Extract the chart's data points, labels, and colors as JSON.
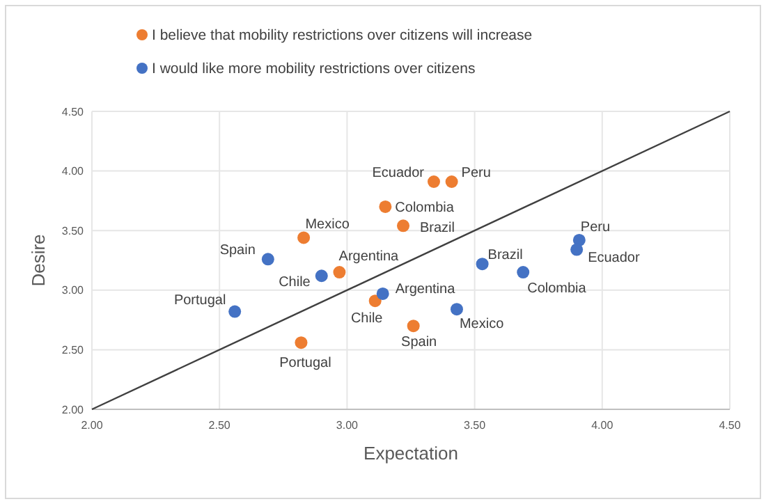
{
  "chart_data": {
    "type": "scatter",
    "xlabel": "Expectation",
    "ylabel": "Desire",
    "xlim": [
      2,
      4.5
    ],
    "ylim": [
      2,
      4.5
    ],
    "xticks": [
      {
        "value": 2,
        "label": "2.00"
      },
      {
        "value": 2.5,
        "label": "2.50"
      },
      {
        "value": 3,
        "label": "3.00"
      },
      {
        "value": 3.5,
        "label": "3.50"
      },
      {
        "value": 4,
        "label": "4.00"
      },
      {
        "value": 4.5,
        "label": "4.50"
      }
    ],
    "yticks": [
      {
        "value": 2,
        "label": "2.00"
      },
      {
        "value": 2.5,
        "label": "2.50"
      },
      {
        "value": 3,
        "label": "3.00"
      },
      {
        "value": 3.5,
        "label": "3.50"
      },
      {
        "value": 4,
        "label": "4.00"
      },
      {
        "value": 4.5,
        "label": "4.50"
      }
    ],
    "grid": true,
    "legend": "top",
    "series": [
      {
        "name": "I believe that mobility restrictions over citizens will increase",
        "color": "#ed7d31",
        "marker": "circle",
        "x": [
          3.34,
          3.41,
          3.15,
          3.22,
          2.83,
          2.97,
          3.11,
          3.26,
          2.82
        ],
        "values": [
          3.91,
          3.91,
          3.7,
          3.54,
          3.44,
          3.15,
          2.91,
          2.7,
          2.56
        ]
      },
      {
        "name": "I would like more mobility restrictions over citizens",
        "color": "#4472c4",
        "marker": "circle",
        "x": [
          2.69,
          2.9,
          2.56,
          3.14,
          3.43,
          3.53,
          3.69,
          3.91,
          3.9
        ],
        "values": [
          3.26,
          3.12,
          2.82,
          2.97,
          2.84,
          3.22,
          3.15,
          3.42,
          3.34
        ]
      },
      {
        "type": "line",
        "color": "#404040",
        "x": [
          2,
          4.5
        ],
        "values": [
          2,
          4.5
        ]
      }
    ],
    "annotations": [
      {
        "text": "Ecuador",
        "x": 3.34,
        "y": 3.91
      },
      {
        "text": "Peru",
        "x": 3.41,
        "y": 3.91
      },
      {
        "text": "Colombia",
        "x": 3.15,
        "y": 3.7
      },
      {
        "text": "Brazil",
        "x": 3.22,
        "y": 3.54
      },
      {
        "text": "Mexico",
        "x": 2.83,
        "y": 3.44
      },
      {
        "text": "Argentina",
        "x": 2.97,
        "y": 3.15
      },
      {
        "text": "Chile",
        "x": 3.11,
        "y": 2.91
      },
      {
        "text": "Spain",
        "x": 3.26,
        "y": 2.7
      },
      {
        "text": "Portugal",
        "x": 2.82,
        "y": 2.56
      },
      {
        "text": "Spain",
        "x": 2.69,
        "y": 3.26
      },
      {
        "text": "Chile",
        "x": 2.9,
        "y": 3.12
      },
      {
        "text": "Portugal",
        "x": 2.56,
        "y": 2.82
      },
      {
        "text": "Argentina",
        "x": 3.14,
        "y": 2.97
      },
      {
        "text": "Mexico",
        "x": 3.43,
        "y": 2.84
      },
      {
        "text": "Brazil",
        "x": 3.53,
        "y": 3.22
      },
      {
        "text": "Colombia",
        "x": 3.69,
        "y": 3.15
      },
      {
        "text": "Peru",
        "x": 3.91,
        "y": 3.42
      },
      {
        "text": "Ecuador",
        "x": 3.9,
        "y": 3.34
      }
    ]
  }
}
